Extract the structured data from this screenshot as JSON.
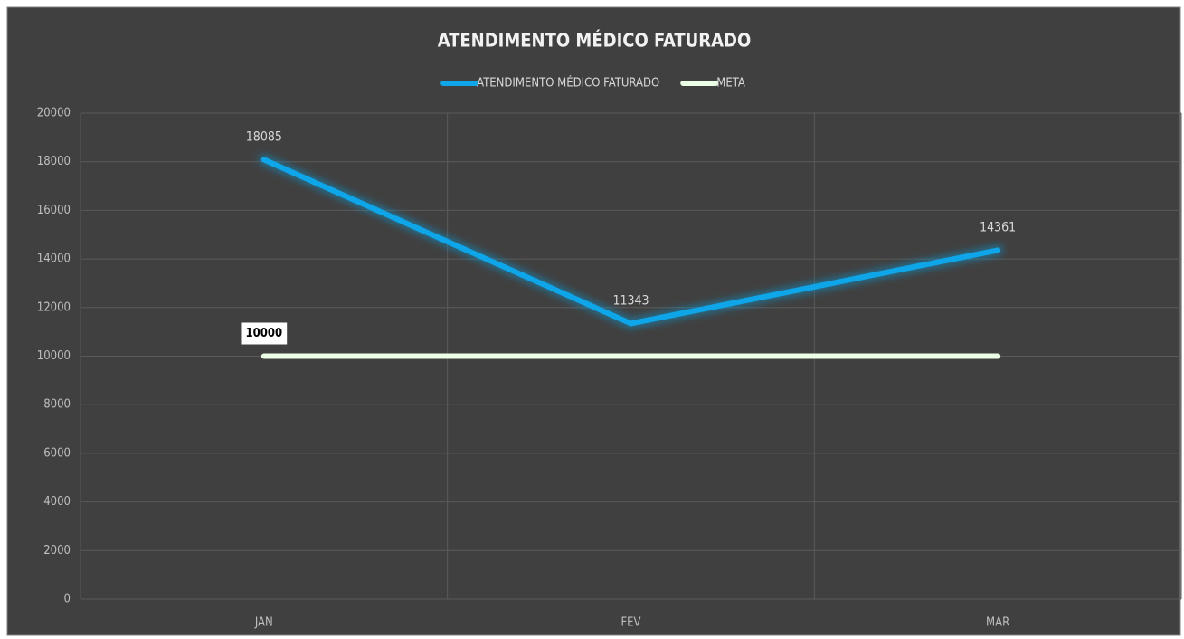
{
  "chart_data": {
    "type": "line",
    "title": "ATENDIMENTO MÉDICO FATURADO",
    "categories": [
      "JAN",
      "FEV",
      "MAR"
    ],
    "series": [
      {
        "name": "ATENDIMENTO MÉDICO FATURADO",
        "color": "#0ea5e9",
        "values": [
          18085,
          11343,
          14361
        ],
        "data_labels": "all"
      },
      {
        "name": "META",
        "color": "#eaffe6",
        "values": [
          10000,
          10000,
          10000
        ],
        "data_labels": "first"
      }
    ],
    "ylim": [
      0,
      20000
    ],
    "yticks": [
      0,
      2000,
      4000,
      6000,
      8000,
      10000,
      12000,
      14000,
      16000,
      18000,
      20000
    ],
    "grid": true,
    "legend": "top"
  }
}
